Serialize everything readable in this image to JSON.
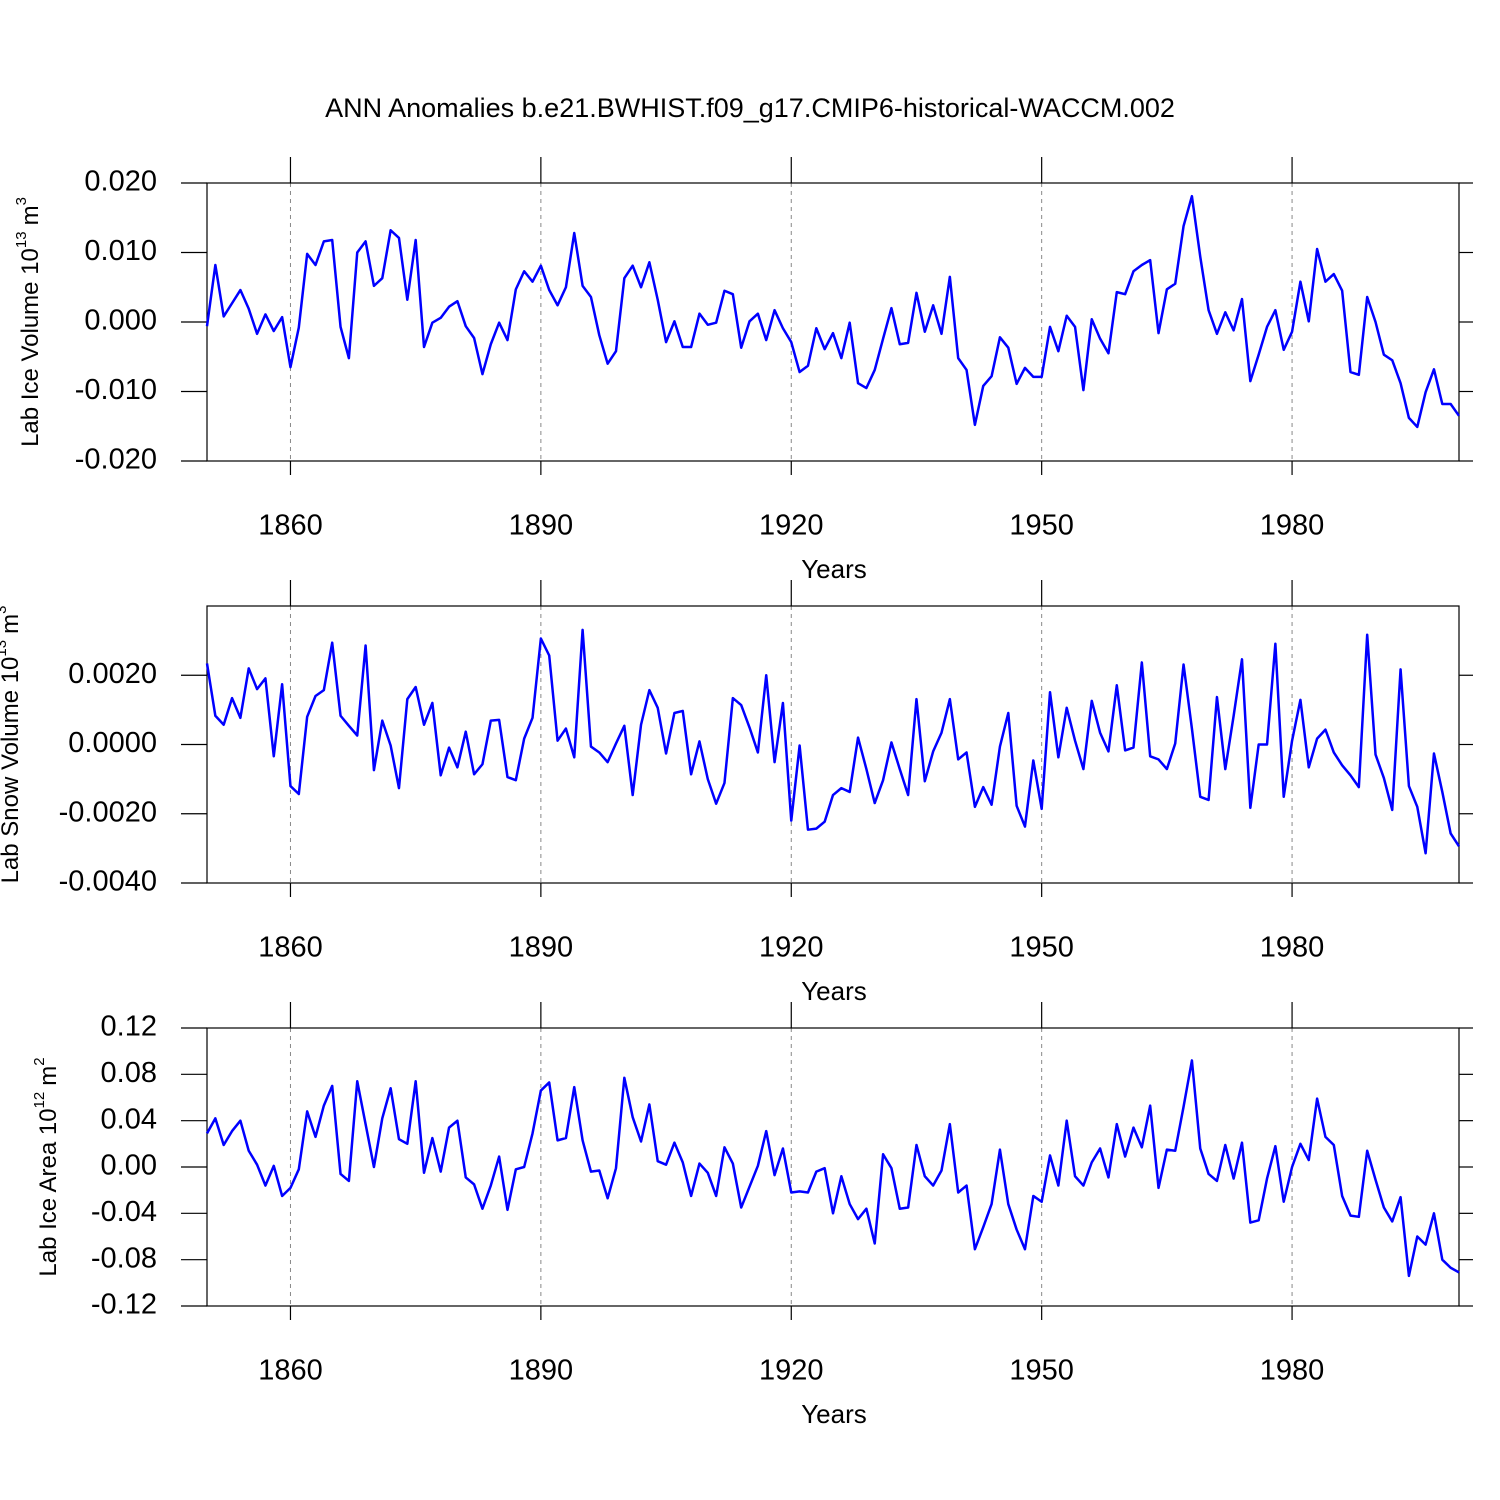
{
  "chart_data": [
    {
      "type": "line",
      "title": "ANN Anomalies b.e21.BWHIST.f09_g17.CMIP6-historical-WACCM.002",
      "xlabel": "Years",
      "ylabel": "Lab Ice Volume 10",
      "ylabel_exp": "13",
      "ylabel_unit": "m",
      "ylabel_unit_exp": "3",
      "color": "#0000ff",
      "grid": true,
      "xlim": [
        1850,
        2000
      ],
      "xticks": [
        1860,
        1890,
        1920,
        1950,
        1980
      ],
      "ylim": [
        -0.02,
        0.02
      ],
      "yticks": [
        {
          "value": -0.02,
          "label": "-0.020"
        },
        {
          "value": -0.01,
          "label": "-0.010"
        },
        {
          "value": 0,
          "label": "0.000"
        },
        {
          "value": 0.01,
          "label": "0.010"
        },
        {
          "value": 0.02,
          "label": "0.020"
        }
      ],
      "x": [
        1850,
        1851,
        1852,
        1853,
        1854,
        1855,
        1856,
        1857,
        1858,
        1859,
        1860,
        1861,
        1862,
        1863,
        1864,
        1865,
        1866,
        1867,
        1868,
        1869,
        1870,
        1871,
        1872,
        1873,
        1874,
        1875,
        1876,
        1877,
        1878,
        1879,
        1880,
        1881,
        1882,
        1883,
        1884,
        1885,
        1886,
        1887,
        1888,
        1889,
        1890,
        1891,
        1892,
        1893,
        1894,
        1895,
        1896,
        1897,
        1898,
        1899,
        1900,
        1901,
        1902,
        1903,
        1904,
        1905,
        1906,
        1907,
        1908,
        1909,
        1910,
        1911,
        1912,
        1913,
        1914,
        1915,
        1916,
        1917,
        1918,
        1919,
        1920,
        1921,
        1922,
        1923,
        1924,
        1925,
        1926,
        1927,
        1928,
        1929,
        1930,
        1931,
        1932,
        1933,
        1934,
        1935,
        1936,
        1937,
        1938,
        1939,
        1940,
        1941,
        1942,
        1943,
        1944,
        1945,
        1946,
        1947,
        1948,
        1949,
        1950,
        1951,
        1952,
        1953,
        1954,
        1955,
        1956,
        1957,
        1958,
        1959,
        1960,
        1961,
        1962,
        1963,
        1964,
        1965,
        1966,
        1967,
        1968,
        1969,
        1970,
        1971,
        1972,
        1973,
        1974,
        1975,
        1976,
        1977,
        1978,
        1979,
        1980,
        1981,
        1982,
        1983,
        1984,
        1985,
        1986,
        1987,
        1988,
        1989,
        1990,
        1991,
        1992,
        1993,
        1994,
        1995,
        1996,
        1997,
        1998,
        1999,
        2000
      ],
      "values": [
        -0.0006,
        0.0082,
        0.0008,
        0.0027,
        0.0046,
        0.0019,
        -0.0017,
        0.0011,
        -0.0013,
        0.0007,
        -0.0065,
        -0.0008,
        0.0098,
        0.0082,
        0.0116,
        0.0118,
        -0.0007,
        -0.0052,
        0.01,
        0.0116,
        0.0052,
        0.0063,
        0.0132,
        0.0121,
        0.0032,
        0.0118,
        -0.0036,
        -0.0001,
        0.0006,
        0.0022,
        0.003,
        -0.0006,
        -0.0023,
        -0.0075,
        -0.0032,
        -0.0001,
        -0.0026,
        0.0047,
        0.0073,
        0.0058,
        0.0081,
        0.0046,
        0.0024,
        0.005,
        0.0128,
        0.0052,
        0.0036,
        -0.0019,
        -0.006,
        -0.0042,
        0.0063,
        0.0081,
        0.005,
        0.0086,
        0.0032,
        -0.0029,
        0.0001,
        -0.0036,
        -0.0036,
        0.0012,
        -0.0004,
        -0.0001,
        0.0045,
        0.004,
        -0.0037,
        0.0001,
        0.0012,
        -0.0026,
        0.0017,
        -0.0009,
        -0.0029,
        -0.0072,
        -0.0063,
        -0.0009,
        -0.0039,
        -0.0016,
        -0.0052,
        -0.0001,
        -0.0088,
        -0.0095,
        -0.0069,
        -0.0024,
        0.002,
        -0.0032,
        -0.003,
        0.0042,
        -0.0014,
        0.0024,
        -0.0017,
        0.0065,
        -0.0052,
        -0.0069,
        -0.0148,
        -0.0092,
        -0.0078,
        -0.0022,
        -0.0037,
        -0.0089,
        -0.0066,
        -0.0079,
        -0.0079,
        -0.0007,
        -0.0042,
        0.0009,
        -0.0007,
        -0.0098,
        0.0004,
        -0.0024,
        -0.0045,
        0.0043,
        0.004,
        0.0073,
        0.0082,
        0.0089,
        -0.0016,
        0.0047,
        0.0055,
        0.0138,
        0.0181,
        0.0094,
        0.0017,
        -0.0017,
        0.0014,
        -0.0012,
        0.0033,
        -0.0085,
        -0.0047,
        -0.0007,
        0.0017,
        -0.004,
        -0.0014,
        0.0058,
        0.0001,
        0.0105,
        0.0058,
        0.0069,
        0.0045,
        -0.0072,
        -0.0076,
        0.0036,
        0.0,
        -0.0047,
        -0.0055,
        -0.0088,
        -0.0138,
        -0.0151,
        -0.0101,
        -0.0068,
        -0.0118,
        -0.0118,
        -0.0135
      ]
    },
    {
      "type": "line",
      "xlabel": "Years",
      "ylabel": "Lab Snow Volume 10",
      "ylabel_exp": "13",
      "ylabel_unit": "m",
      "ylabel_unit_exp": "3",
      "color": "#0000ff",
      "grid": true,
      "xlim": [
        1850,
        2000
      ],
      "xticks": [
        1860,
        1890,
        1920,
        1950,
        1980
      ],
      "ylim": [
        -0.004,
        0.004
      ],
      "yticks": [
        {
          "value": -0.004,
          "label": "-0.0040"
        },
        {
          "value": -0.002,
          "label": "-0.0020"
        },
        {
          "value": 0,
          "label": "0.0000"
        },
        {
          "value": 0.002,
          "label": "0.0020"
        }
      ],
      "x": [
        1850,
        1851,
        1852,
        1853,
        1854,
        1855,
        1856,
        1857,
        1858,
        1859,
        1860,
        1861,
        1862,
        1863,
        1864,
        1865,
        1866,
        1867,
        1868,
        1869,
        1870,
        1871,
        1872,
        1873,
        1874,
        1875,
        1876,
        1877,
        1878,
        1879,
        1880,
        1881,
        1882,
        1883,
        1884,
        1885,
        1886,
        1887,
        1888,
        1889,
        1890,
        1891,
        1892,
        1893,
        1894,
        1895,
        1896,
        1897,
        1898,
        1899,
        1900,
        1901,
        1902,
        1903,
        1904,
        1905,
        1906,
        1907,
        1908,
        1909,
        1910,
        1911,
        1912,
        1913,
        1914,
        1915,
        1916,
        1917,
        1918,
        1919,
        1920,
        1921,
        1922,
        1923,
        1924,
        1925,
        1926,
        1927,
        1928,
        1929,
        1930,
        1931,
        1932,
        1933,
        1934,
        1935,
        1936,
        1937,
        1938,
        1939,
        1940,
        1941,
        1942,
        1943,
        1944,
        1945,
        1946,
        1947,
        1948,
        1949,
        1950,
        1951,
        1952,
        1953,
        1954,
        1955,
        1956,
        1957,
        1958,
        1959,
        1960,
        1961,
        1962,
        1963,
        1964,
        1965,
        1966,
        1967,
        1968,
        1969,
        1970,
        1971,
        1972,
        1973,
        1974,
        1975,
        1976,
        1977,
        1978,
        1979,
        1980,
        1981,
        1982,
        1983,
        1984,
        1985,
        1986,
        1987,
        1988,
        1989,
        1990,
        1991,
        1992,
        1993,
        1994,
        1995,
        1996,
        1997,
        1998,
        1999,
        2000
      ],
      "values": [
        0.00234,
        0.00083,
        0.00057,
        0.00134,
        0.00077,
        0.0022,
        0.0016,
        0.00191,
        -0.00034,
        0.00174,
        -0.0012,
        -0.00143,
        0.0008,
        0.0014,
        0.00157,
        0.00294,
        0.00083,
        0.00054,
        0.00026,
        0.00286,
        -0.00074,
        0.00069,
        -3e-05,
        -0.00126,
        0.00131,
        0.00166,
        0.00057,
        0.0012,
        -0.00089,
        -9e-05,
        -0.00066,
        0.00037,
        -0.00086,
        -0.00057,
        0.00069,
        0.00071,
        -0.00094,
        -0.00103,
        0.00017,
        0.00077,
        0.00306,
        0.00257,
        0.00011,
        0.00046,
        -0.00037,
        0.00331,
        -6e-05,
        -0.00023,
        -0.00051,
        3e-05,
        0.00054,
        -0.00146,
        0.00057,
        0.00157,
        0.00106,
        -0.00026,
        0.00091,
        0.00097,
        -0.00086,
        9e-05,
        -0.001,
        -0.00171,
        -0.00111,
        0.00134,
        0.00114,
        0.00049,
        -0.00023,
        0.002,
        -0.00051,
        0.0012,
        -0.0022,
        -3e-05,
        -0.00246,
        -0.00243,
        -0.00223,
        -0.00146,
        -0.00126,
        -0.00137,
        0.0002,
        -0.00071,
        -0.00169,
        -0.00103,
        6e-05,
        -0.00071,
        -0.00146,
        0.00131,
        -0.00106,
        -0.0002,
        0.00034,
        0.00131,
        -0.00043,
        -0.00023,
        -0.0018,
        -0.00123,
        -0.00174,
        -6e-05,
        0.00091,
        -0.00177,
        -0.00237,
        -0.00046,
        -0.00186,
        0.00151,
        -0.00037,
        0.00106,
        0.00011,
        -0.00071,
        0.00126,
        0.00034,
        -0.0002,
        0.00171,
        -0.00017,
        -9e-05,
        0.00237,
        -0.00034,
        -0.00043,
        -0.00071,
        3e-05,
        0.00231,
        0.00046,
        -0.00151,
        -0.0016,
        0.00137,
        -0.00071,
        0.00083,
        0.00246,
        -0.00183,
        0.0,
        0.0,
        0.00291,
        -0.00151,
        0.00011,
        0.00129,
        -0.00066,
        0.00017,
        0.00043,
        -0.00023,
        -0.0006,
        -0.00089,
        -0.00123,
        0.00317,
        -0.00029,
        -0.00097,
        -0.00189,
        0.00217,
        -0.0012,
        -0.0018,
        -0.00314,
        -0.00026,
        -0.00137,
        -0.00257,
        -0.00294
      ]
    },
    {
      "type": "line",
      "xlabel": "Years",
      "ylabel": "Lab Ice Area 10",
      "ylabel_exp": "12",
      "ylabel_unit": "m",
      "ylabel_unit_exp": "2",
      "color": "#0000ff",
      "grid": true,
      "xlim": [
        1850,
        2000
      ],
      "xticks": [
        1860,
        1890,
        1920,
        1950,
        1980
      ],
      "ylim": [
        -0.12,
        0.12
      ],
      "yticks": [
        {
          "value": -0.12,
          "label": "-0.12"
        },
        {
          "value": -0.08,
          "label": "-0.08"
        },
        {
          "value": -0.04,
          "label": "-0.04"
        },
        {
          "value": 0,
          "label": "0.00"
        },
        {
          "value": 0.04,
          "label": "0.04"
        },
        {
          "value": 0.08,
          "label": "0.08"
        },
        {
          "value": 0.12,
          "label": "0.12"
        }
      ],
      "x": [
        1850,
        1851,
        1852,
        1853,
        1854,
        1855,
        1856,
        1857,
        1858,
        1859,
        1860,
        1861,
        1862,
        1863,
        1864,
        1865,
        1866,
        1867,
        1868,
        1869,
        1870,
        1871,
        1872,
        1873,
        1874,
        1875,
        1876,
        1877,
        1878,
        1879,
        1880,
        1881,
        1882,
        1883,
        1884,
        1885,
        1886,
        1887,
        1888,
        1889,
        1890,
        1891,
        1892,
        1893,
        1894,
        1895,
        1896,
        1897,
        1898,
        1899,
        1900,
        1901,
        1902,
        1903,
        1904,
        1905,
        1906,
        1907,
        1908,
        1909,
        1910,
        1911,
        1912,
        1913,
        1914,
        1915,
        1916,
        1917,
        1918,
        1919,
        1920,
        1921,
        1922,
        1923,
        1924,
        1925,
        1926,
        1927,
        1928,
        1929,
        1930,
        1931,
        1932,
        1933,
        1934,
        1935,
        1936,
        1937,
        1938,
        1939,
        1940,
        1941,
        1942,
        1943,
        1944,
        1945,
        1946,
        1947,
        1948,
        1949,
        1950,
        1951,
        1952,
        1953,
        1954,
        1955,
        1956,
        1957,
        1958,
        1959,
        1960,
        1961,
        1962,
        1963,
        1964,
        1965,
        1966,
        1967,
        1968,
        1969,
        1970,
        1971,
        1972,
        1973,
        1974,
        1975,
        1976,
        1977,
        1978,
        1979,
        1980,
        1981,
        1982,
        1983,
        1984,
        1985,
        1986,
        1987,
        1988,
        1989,
        1990,
        1991,
        1992,
        1993,
        1994,
        1995,
        1996,
        1997,
        1998,
        1999,
        2000
      ],
      "values": [
        0.029,
        0.042,
        0.019,
        0.031,
        0.04,
        0.014,
        0.002,
        -0.016,
        0.001,
        -0.025,
        -0.018,
        -0.002,
        0.048,
        0.026,
        0.053,
        0.07,
        -0.006,
        -0.012,
        0.074,
        0.037,
        0.0,
        0.042,
        0.068,
        0.024,
        0.02,
        0.074,
        -0.005,
        0.025,
        -0.004,
        0.034,
        0.04,
        -0.009,
        -0.015,
        -0.036,
        -0.016,
        0.009,
        -0.037,
        -0.002,
        0.0,
        0.029,
        0.066,
        0.073,
        0.023,
        0.025,
        0.069,
        0.023,
        -0.004,
        -0.003,
        -0.027,
        -0.001,
        0.077,
        0.043,
        0.022,
        0.054,
        0.005,
        0.002,
        0.021,
        0.004,
        -0.025,
        0.003,
        -0.005,
        -0.025,
        0.017,
        0.003,
        -0.035,
        -0.017,
        0.001,
        0.031,
        -0.007,
        0.016,
        -0.022,
        -0.021,
        -0.022,
        -0.004,
        -0.001,
        -0.04,
        -0.008,
        -0.032,
        -0.045,
        -0.036,
        -0.066,
        0.011,
        -0.001,
        -0.036,
        -0.035,
        0.019,
        -0.008,
        -0.016,
        -0.003,
        0.037,
        -0.022,
        -0.016,
        -0.071,
        -0.052,
        -0.032,
        0.015,
        -0.032,
        -0.054,
        -0.071,
        -0.025,
        -0.03,
        0.01,
        -0.016,
        0.04,
        -0.008,
        -0.016,
        0.004,
        0.016,
        -0.009,
        0.037,
        0.009,
        0.034,
        0.017,
        0.053,
        -0.018,
        0.015,
        0.014,
        0.052,
        0.092,
        0.016,
        -0.006,
        -0.012,
        0.019,
        -0.01,
        0.021,
        -0.048,
        -0.046,
        -0.01,
        0.018,
        -0.03,
        0.0,
        0.02,
        0.006,
        0.059,
        0.026,
        0.019,
        -0.025,
        -0.042,
        -0.043,
        0.014,
        -0.011,
        -0.035,
        -0.047,
        -0.026,
        -0.094,
        -0.06,
        -0.067,
        -0.04,
        -0.08,
        -0.087,
        -0.091
      ]
    }
  ]
}
